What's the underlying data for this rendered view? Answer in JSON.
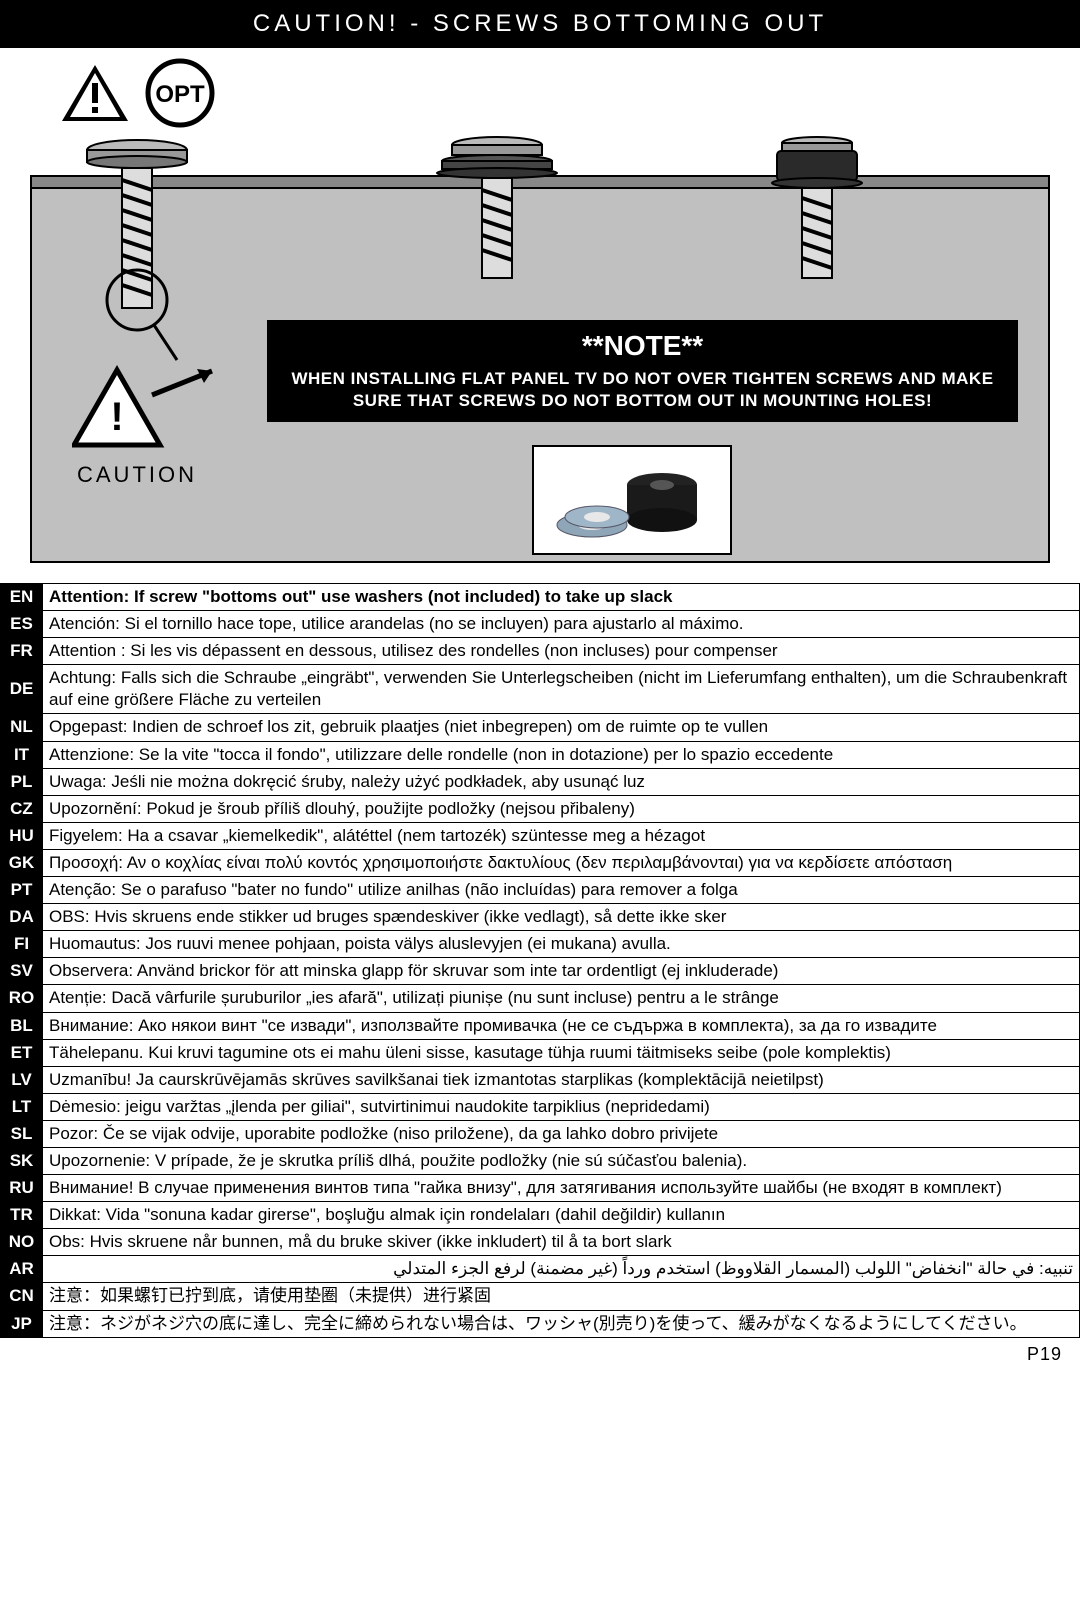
{
  "header": {
    "title": "CAUTION! - SCREWS BOTTOMING OUT"
  },
  "icons": {
    "opt_label": "OPT"
  },
  "caution": {
    "label": "CAUTION",
    "bang": "!"
  },
  "note": {
    "title": "**NOTE**",
    "body": "WHEN INSTALLING FLAT PANEL TV DO NOT OVER TIGHTEN SCREWS AND MAKE SURE THAT SCREWS DO NOT BOTTOM OUT IN MOUNTING HOLES!"
  },
  "languages": [
    {
      "code": "EN",
      "text": "Attention: If screw \"bottoms out\" use washers (not included) to take up slack",
      "bold": true
    },
    {
      "code": "ES",
      "text": "Atención: Si el tornillo hace tope, utilice arandelas (no se incluyen) para ajustarlo al máximo."
    },
    {
      "code": "FR",
      "text": "Attention : Si les vis dépassent en dessous, utilisez des rondelles (non incluses) pour compenser"
    },
    {
      "code": "DE",
      "text": "Achtung: Falls sich die Schraube „eingräbt\", verwenden Sie Unterlegscheiben (nicht im Lieferumfang enthalten), um die Schraubenkraft auf eine größere Fläche zu verteilen"
    },
    {
      "code": "NL",
      "text": "Opgepast: Indien de schroef los zit, gebruik plaatjes (niet inbegrepen) om de ruimte op te vullen"
    },
    {
      "code": "IT",
      "text": "Attenzione: Se la vite \"tocca il fondo\", utilizzare delle rondelle (non in dotazione) per lo spazio eccedente"
    },
    {
      "code": "PL",
      "text": "Uwaga: Jeśli nie można dokręcić śruby, należy użyć podkładek, aby usunąć luz"
    },
    {
      "code": "CZ",
      "text": "Upozornění: Pokud je šroub příliš dlouhý, použijte podložky (nejsou přibaleny)"
    },
    {
      "code": "HU",
      "text": "Figyelem: Ha a csavar „kiemelkedik\", alátéttel (nem tartozék) szüntesse meg a hézagot"
    },
    {
      "code": "GK",
      "text": "Προσοχή: Αν ο κοχλίας είναι πολύ κοντός χρησιμοποιήστε δακτυλίους (δεν περιλαμβάνονται) για να κερδίσετε απόσταση"
    },
    {
      "code": "PT",
      "text": "Atenção: Se o parafuso \"bater no fundo\" utilize anilhas (não incluídas) para remover a folga"
    },
    {
      "code": "DA",
      "text": "OBS: Hvis skruens ende stikker ud bruges spændeskiver (ikke vedlagt), så dette ikke sker"
    },
    {
      "code": "FI",
      "text": "Huomautus: Jos ruuvi menee pohjaan, poista välys aluslevyjen (ei mukana) avulla."
    },
    {
      "code": "SV",
      "text": "Observera: Använd brickor för att minska glapp för skruvar som inte tar ordentligt (ej inkluderade)"
    },
    {
      "code": "RO",
      "text": "Atenție: Dacă vârfurile șuruburilor „ies afară\", utilizați piunișe (nu sunt incluse) pentru a le strânge"
    },
    {
      "code": "BL",
      "text": "Внимание: Ако някои винт \"се извади\", използвайте промивачка (не се съдържа в комплекта), за да го извадите"
    },
    {
      "code": "ET",
      "text": "Tähelepanu. Kui kruvi tagumine ots ei mahu üleni sisse, kasutage tühja ruumi täitmiseks seibe (pole komplektis)"
    },
    {
      "code": "LV",
      "text": "Uzmanību! Ja caurskrūvējamās skrūves savilkšanai tiek izmantotas starplikas (komplektācijā neietilpst)"
    },
    {
      "code": "LT",
      "text": "Dėmesio: jeigu varžtas „įlenda per giliai\", sutvirtinimui naudokite tarpiklius (nepridedami)"
    },
    {
      "code": "SL",
      "text": "Pozor: Če se vijak odvije, uporabite podložke (niso priložene), da ga lahko dobro privijete"
    },
    {
      "code": "SK",
      "text": "Upozornenie: V prípade, že je skrutka príliš dlhá, použite podložky (nie sú súčasťou balenia)."
    },
    {
      "code": "RU",
      "text": "Внимание! В случае применения винтов типа \"гайка внизу\", для затягивания используйте шайбы (не входят в комплект)"
    },
    {
      "code": "TR",
      "text": "Dikkat: Vida \"sonuna kadar girerse\", boşluğu almak için rondelaları (dahil değildir) kullanın"
    },
    {
      "code": "NO",
      "text": "Obs: Hvis skruene når bunnen, må du bruke skiver (ikke inkludert) til å ta bort slark"
    },
    {
      "code": "AR",
      "text": "تنبيه: في حالة \"انخفاض\" اللولب (المسمار القلاووظ) استخدم ورداً (غير مضمنة) لرفع الجزء المتدلي"
    },
    {
      "code": "CN",
      "text": "注意：如果螺钉已拧到底，请使用垫圈（未提供）进行紧固"
    },
    {
      "code": "JP",
      "text": "注意：ネジがネジ穴の底に達し、完全に締められない場合は、ワッシャ(別売り)を使って、緩みがなくなるようにしてください。"
    }
  ],
  "footer": {
    "page": "P19"
  },
  "colors": {
    "black": "#000000",
    "white": "#ffffff",
    "grey_bg": "#c0c0c0",
    "bar_grey": "#888888"
  }
}
